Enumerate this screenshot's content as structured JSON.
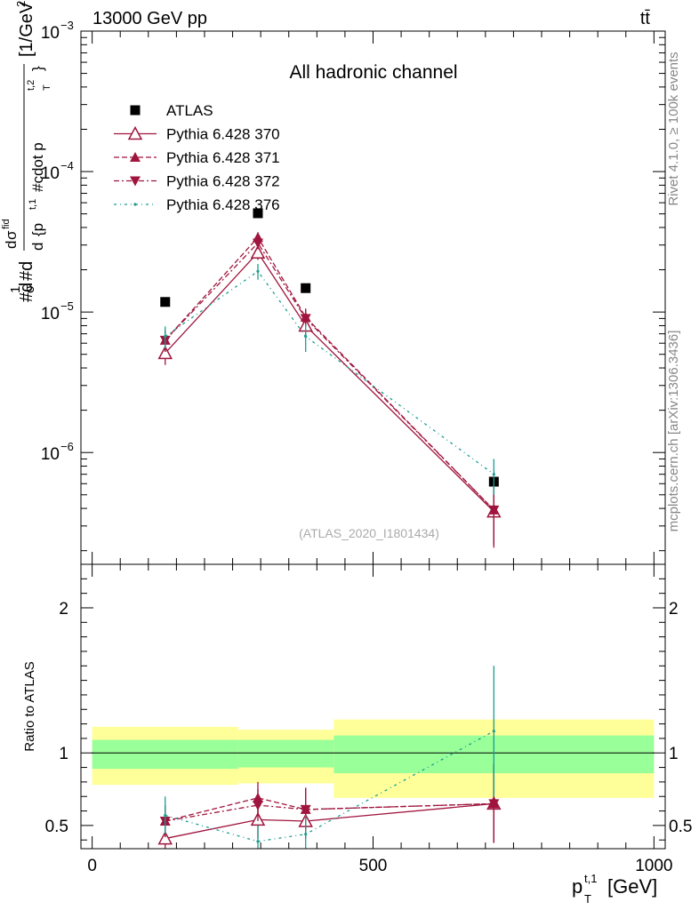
{
  "header": {
    "energy": "13000 GeV pp",
    "process": "tt̄"
  },
  "side": {
    "rivet": "Rivet 4.1.0, ≥ 100k events",
    "site": "mcplots.cern.ch [arXiv:1306.3436]"
  },
  "colors": {
    "atlas": "#000000",
    "p370": "#a0153e",
    "p371": "#a0153e",
    "p372": "#a0153e",
    "p376": "#1a9e8f",
    "band_inner": "#99ff99",
    "band_outer": "#ffff99"
  },
  "chart_data": [
    {
      "type": "scatter",
      "title": "All hadronic channel",
      "watermark": "(ATLAS_2020_I1801434)",
      "ylabel_parts": {
        "frac_top": "#d",
        "one": "1",
        "sigma": "σ",
        "hash_d": "#d",
        "d2sig": "d",
        "sig_fid": "σ",
        "fid": "fid",
        "d2": "d",
        "brace": "{p",
        "t1": "t,1",
        "cdot": " #cdot p",
        "t2": "t,2",
        "T": "T",
        "close": "}",
        "unit": "[1/GeV",
        "unit_sup": "2",
        "unit_close": "]"
      },
      "yscale": "log",
      "ylim": [
        1.6e-07,
        0.001
      ],
      "yticks": [
        {
          "v": 0.001,
          "base": "10",
          "exp": "−3"
        },
        {
          "v": 0.0001,
          "base": "10",
          "exp": "−4"
        },
        {
          "v": 1e-05,
          "base": "10",
          "exp": "−5"
        },
        {
          "v": 1e-06,
          "base": "10",
          "exp": "−6"
        }
      ],
      "xlim": [
        -20,
        1020
      ],
      "legend_position": "top-left",
      "series": [
        {
          "name": "ATLAS",
          "marker": "square",
          "x": [
            130,
            295,
            380,
            715
          ],
          "y": [
            1.18e-05,
            5.05e-05,
            1.48e-05,
            6.2e-07
          ],
          "err_lo": [
            0,
            0,
            0,
            0
          ],
          "err_hi": [
            0,
            0,
            0,
            0
          ]
        },
        {
          "name": "Pythia 6.428 370",
          "marker": "triangle-open",
          "dash": "",
          "x": [
            130,
            295,
            380,
            715
          ],
          "y": [
            5.1e-06,
            2.65e-05,
            8e-06,
            3.8e-07
          ],
          "err_lo": [
            9e-07,
            3e-06,
            1.2e-06,
            1.7e-07
          ],
          "err_hi": [
            9e-07,
            3e-06,
            1.2e-06,
            1.9e-07
          ]
        },
        {
          "name": "Pythia 6.428 371",
          "marker": "triangle-up",
          "dash": "6,3",
          "x": [
            130,
            295,
            380,
            715
          ],
          "y": [
            6.3e-06,
            3.4e-05,
            9.2e-06,
            3.9e-07
          ],
          "err_lo": [
            1.1e-06,
            3e-06,
            1.2e-06,
            1.7e-07
          ],
          "err_hi": [
            1.1e-06,
            3e-06,
            1.4e-06,
            2e-07
          ]
        },
        {
          "name": "Pythia 6.428 372",
          "marker": "triangle-down",
          "dash": "6,3,2,3",
          "x": [
            130,
            295,
            380,
            715
          ],
          "y": [
            6.3e-06,
            3.1e-05,
            9e-06,
            3.9e-07
          ],
          "err_lo": [
            1.1e-06,
            3e-06,
            1.2e-06,
            1.7e-07
          ],
          "err_hi": [
            1.1e-06,
            3e-06,
            1.4e-06,
            2e-07
          ]
        },
        {
          "name": "Pythia 6.428 376",
          "marker": "dot",
          "dash": "3,4,1,4",
          "x": [
            130,
            295,
            380,
            715
          ],
          "y": [
            6.7e-06,
            1.95e-05,
            6.7e-06,
            7e-07
          ],
          "err_lo": [
            1.2e-06,
            2.5e-06,
            1.5e-06,
            2e-07
          ],
          "err_hi": [
            1.2e-06,
            2.5e-06,
            1.5e-06,
            2e-07
          ]
        }
      ]
    },
    {
      "type": "scatter",
      "ylabel": "Ratio to ATLAS",
      "xlabel_main": "p",
      "xlabel_sup": "t,1",
      "xlabel_sub": "T",
      "xlabel_unit": "[GeV]",
      "ylim": [
        0.34,
        2.3
      ],
      "yticks": [
        {
          "v": 0.5,
          "label": "0.5"
        },
        {
          "v": 1,
          "label": "1"
        },
        {
          "v": 2,
          "label": "2"
        }
      ],
      "xlim": [
        -20,
        1020
      ],
      "xticks": [
        {
          "v": 0,
          "label": "0"
        },
        {
          "v": 500,
          "label": "500"
        },
        {
          "v": 1000,
          "label": "1000"
        }
      ],
      "bands": [
        {
          "x0": 0,
          "x1": 260,
          "inner": [
            0.89,
            1.09
          ],
          "outer": [
            0.78,
            1.18
          ]
        },
        {
          "x0": 260,
          "x1": 430,
          "inner": [
            0.9,
            1.09
          ],
          "outer": [
            0.79,
            1.16
          ]
        },
        {
          "x0": 430,
          "x1": 1000,
          "inner": [
            0.86,
            1.12
          ],
          "outer": [
            0.69,
            1.23
          ]
        }
      ],
      "series": [
        {
          "name": "Pythia 6.428 370",
          "marker": "triangle-open",
          "dash": "",
          "x": [
            130,
            295,
            380,
            715
          ],
          "y": [
            0.41,
            0.54,
            0.53,
            0.65
          ],
          "err": [
            0.1,
            0.13,
            0.12,
            0.27
          ]
        },
        {
          "name": "Pythia 6.428 371",
          "marker": "triangle-up",
          "dash": "6,3",
          "x": [
            130,
            295,
            380,
            715
          ],
          "y": [
            0.53,
            0.69,
            0.61,
            0.65
          ],
          "err": [
            0.11,
            0.11,
            0.15,
            0.27
          ]
        },
        {
          "name": "Pythia 6.428 372",
          "marker": "triangle-down",
          "dash": "6,3,2,3",
          "x": [
            130,
            295,
            380,
            715
          ],
          "y": [
            0.53,
            0.64,
            0.61,
            0.65
          ],
          "err": [
            0.11,
            0.11,
            0.15,
            0.27
          ]
        },
        {
          "name": "Pythia 6.428 376",
          "marker": "dot",
          "dash": "3,4,1,4",
          "x": [
            130,
            295,
            380,
            715
          ],
          "y": [
            0.57,
            0.39,
            0.44,
            1.15
          ],
          "err": [
            0.13,
            0.11,
            0.13,
            0.45
          ]
        }
      ]
    }
  ]
}
